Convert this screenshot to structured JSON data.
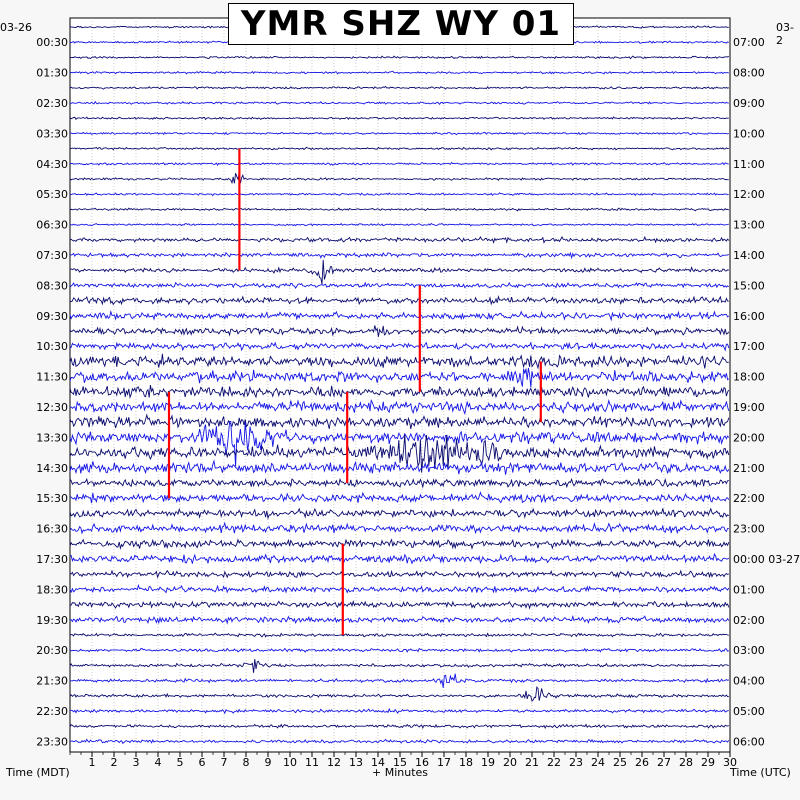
{
  "chart_data": {
    "type": "line",
    "title": "YMR SHZ WY 01",
    "xlabel": "+ Minutes",
    "left_axis_label": "Time (MDT)",
    "right_axis_label": "Time (UTC)",
    "start_date_left": "03-26",
    "start_date_right": "03-2",
    "x_range": [
      0,
      30
    ],
    "x_ticks": [
      "1",
      "2",
      "3",
      "4",
      "5",
      "6",
      "7",
      "8",
      "9",
      "10",
      "11",
      "12",
      "13",
      "14",
      "15",
      "16",
      "17",
      "18",
      "19",
      "20",
      "21",
      "22",
      "23",
      "24",
      "25",
      "26",
      "27",
      "28",
      "29",
      "30"
    ],
    "left_ticks": [
      "00:30",
      "01:30",
      "02:30",
      "03:30",
      "04:30",
      "05:30",
      "06:30",
      "07:30",
      "08:30",
      "09:30",
      "10:30",
      "11:30",
      "12:30",
      "13:30",
      "14:30",
      "15:30",
      "16:30",
      "17:30",
      "18:30",
      "19:30",
      "20:30",
      "21:30",
      "22:30",
      "23:30"
    ],
    "right_ticks": [
      "07:00",
      "08:00",
      "09:00",
      "10:00",
      "11:00",
      "12:00",
      "13:00",
      "14:00",
      "15:00",
      "16:00",
      "17:00",
      "18:00",
      "19:00",
      "20:00",
      "21:00",
      "22:00",
      "23:00",
      "00:00 03-27",
      "01:00",
      "02:00",
      "03:00",
      "04:00",
      "05:00",
      "06:00"
    ],
    "trace_count": 48,
    "trace_colors": [
      "#0a0a6e",
      "#1414e6"
    ],
    "clip_color": "#ff0000",
    "grid": true
  }
}
